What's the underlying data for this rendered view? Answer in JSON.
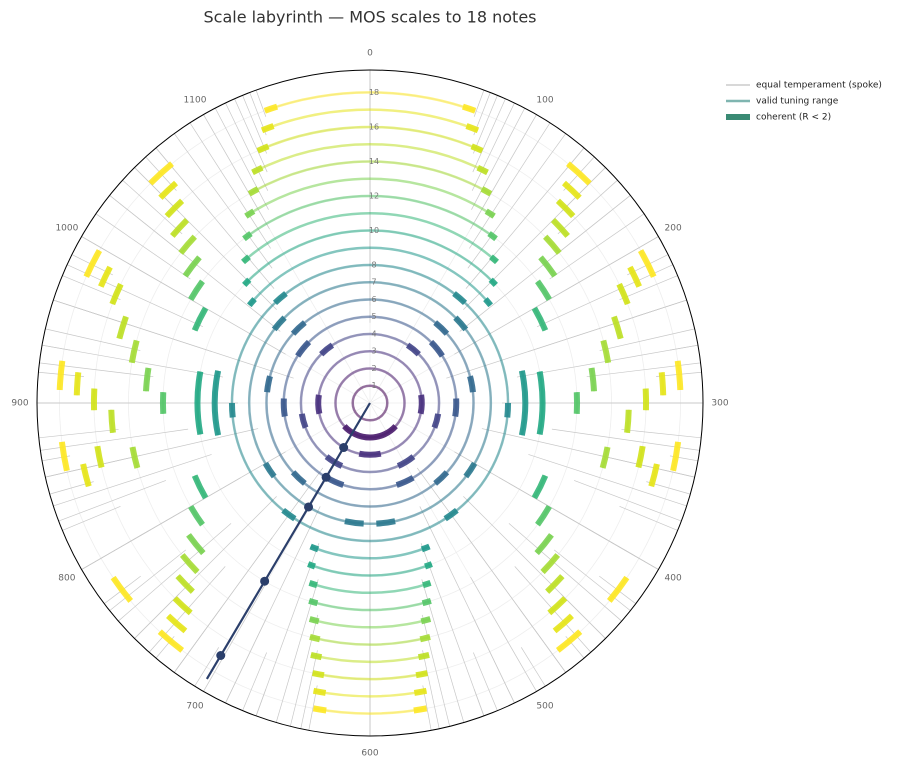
{
  "chart_data": {
    "type": "polar-labyrinth",
    "title": "Scale labyrinth — MOS scales to 18 notes",
    "xlim": [
      0,
      1200
    ],
    "xticks": [
      0,
      100,
      200,
      300,
      400,
      500,
      600,
      700,
      800,
      900,
      1000,
      1100
    ],
    "ylim": [
      0,
      19.3
    ],
    "yticks": [
      1,
      2,
      3,
      4,
      5,
      6,
      7,
      8,
      10,
      12,
      14,
      16,
      18
    ],
    "grid": true,
    "legend_position": "upper right",
    "legend": [
      {
        "name": "equal temperament (spoke)",
        "color": "#999999"
      },
      {
        "name": "valid tuning range",
        "color": "#7fb5b0"
      },
      {
        "name": "coherent (R < 2)",
        "color": "#3a8a74"
      }
    ],
    "generator": {
      "value": 701.955,
      "color": "#2b3f6b",
      "dots": [
        3,
        5,
        7,
        12,
        17
      ]
    },
    "rings": [
      {
        "n": 1,
        "color": "#440154",
        "ranges": [
          [
            0,
            1200
          ]
        ],
        "coherent": []
      },
      {
        "n": 2,
        "color": "#481a6c",
        "ranges": [
          [
            0,
            1200
          ]
        ],
        "coherent": [
          [
            440,
            760
          ]
        ]
      },
      {
        "n": 3,
        "color": "#472f7d",
        "ranges": [
          [
            0,
            1200
          ]
        ],
        "coherent": [
          [
            270,
            340
          ],
          [
            860,
            930
          ],
          [
            560,
            640
          ]
        ]
      },
      {
        "n": 4,
        "color": "#414487",
        "ranges": [
          [
            0,
            1200
          ]
        ],
        "coherent": [
          [
            110,
            150
          ],
          [
            330,
            370
          ],
          [
            830,
            870
          ],
          [
            1050,
            1090
          ],
          [
            470,
            520
          ],
          [
            680,
            730
          ]
        ]
      },
      {
        "n": 5,
        "color": "#39568c",
        "ranges": [
          [
            0,
            1200
          ]
        ],
        "coherent": [
          [
            150,
            190
          ],
          [
            290,
            330
          ],
          [
            870,
            910
          ],
          [
            1010,
            1050
          ],
          [
            500,
            540
          ],
          [
            660,
            700
          ]
        ]
      },
      {
        "n": 6,
        "color": "#31688e",
        "ranges": [
          [
            0,
            1200
          ]
        ],
        "coherent": [
          [
            130,
            160
          ],
          [
            250,
            280
          ],
          [
            920,
            950
          ],
          [
            1040,
            1070
          ],
          [
            440,
            470
          ],
          [
            730,
            760
          ]
        ]
      },
      {
        "n": 7,
        "color": "#2a788e",
        "ranges": [
          [
            0,
            1200
          ]
        ],
        "coherent": [
          [
            150,
            175
          ],
          [
            400,
            425
          ],
          [
            775,
            800
          ],
          [
            1025,
            1050
          ],
          [
            560,
            590
          ],
          [
            610,
            640
          ]
        ]
      },
      {
        "n": 8,
        "color": "#23888e",
        "ranges": [
          [
            0,
            1200
          ]
        ],
        "coherent": [
          [
            125,
            145
          ],
          [
            300,
            320
          ],
          [
            880,
            900
          ],
          [
            1055,
            1075
          ],
          [
            470,
            490
          ],
          [
            710,
            730
          ]
        ]
      },
      {
        "n": 9,
        "color": "#1f988b",
        "ranges": [
          [
            1030,
            170
          ],
          [
            525,
            675
          ],
          [
            260,
            340
          ],
          [
            860,
            940
          ]
        ],
        "coherent": [
          [
            1030,
            1040
          ],
          [
            160,
            170
          ],
          [
            260,
            340
          ],
          [
            860,
            940
          ],
          [
            525,
            535
          ],
          [
            665,
            675
          ]
        ]
      },
      {
        "n": 10,
        "color": "#22a884",
        "ranges": [
          [
            1044,
            156
          ],
          [
            530,
            670
          ],
          [
            265,
            335
          ],
          [
            865,
            935
          ]
        ],
        "coherent": [
          [
            1044,
            1052
          ],
          [
            148,
            156
          ],
          [
            265,
            335
          ],
          [
            865,
            935
          ],
          [
            530,
            538
          ],
          [
            662,
            670
          ]
        ]
      },
      {
        "n": 11,
        "color": "#35b779",
        "ranges": [
          [
            1060,
            140
          ],
          [
            538,
            662
          ],
          [
            200,
            225
          ],
          [
            375,
            400
          ],
          [
            800,
            825
          ],
          [
            975,
            1000
          ]
        ],
        "coherent": [
          [
            1060,
            1068
          ],
          [
            132,
            140
          ],
          [
            538,
            546
          ],
          [
            654,
            662
          ],
          [
            200,
            225
          ],
          [
            375,
            400
          ],
          [
            800,
            825
          ],
          [
            975,
            1000
          ]
        ]
      },
      {
        "n": 12,
        "color": "#54c568",
        "ranges": [
          [
            1075,
            125
          ],
          [
            543,
            657
          ],
          [
            180,
            200
          ],
          [
            290,
            310
          ],
          [
            400,
            420
          ],
          [
            780,
            800
          ],
          [
            890,
            910
          ],
          [
            1000,
            1020
          ]
        ],
        "coherent": [
          [
            1075,
            1083
          ],
          [
            117,
            125
          ],
          [
            543,
            551
          ],
          [
            649,
            657
          ],
          [
            180,
            200
          ],
          [
            290,
            310
          ],
          [
            400,
            420
          ],
          [
            780,
            800
          ],
          [
            890,
            910
          ],
          [
            1000,
            1020
          ]
        ]
      },
      {
        "n": 13,
        "color": "#7ad151",
        "ranges": [
          [
            1088,
            112
          ],
          [
            548,
            652
          ],
          [
            165,
            185
          ],
          [
            270,
            290
          ],
          [
            420,
            440
          ],
          [
            760,
            780
          ],
          [
            910,
            930
          ],
          [
            1015,
            1035
          ]
        ],
        "coherent": [
          [
            1088,
            1096
          ],
          [
            104,
            112
          ],
          [
            548,
            556
          ],
          [
            644,
            652
          ],
          [
            165,
            185
          ],
          [
            270,
            290
          ],
          [
            420,
            440
          ],
          [
            760,
            780
          ],
          [
            910,
            930
          ],
          [
            1015,
            1035
          ]
        ]
      },
      {
        "n": 14,
        "color": "#a5db36",
        "ranges": [
          [
            1100,
            100
          ],
          [
            552,
            648
          ],
          [
            155,
            172
          ],
          [
            250,
            268
          ],
          [
            335,
            352
          ],
          [
            430,
            448
          ],
          [
            752,
            770
          ],
          [
            848,
            865
          ],
          [
            932,
            950
          ],
          [
            1028,
            1045
          ]
        ],
        "coherent": [
          [
            1100,
            1108
          ],
          [
            92,
            100
          ],
          [
            552,
            560
          ],
          [
            640,
            648
          ],
          [
            155,
            172
          ],
          [
            250,
            268
          ],
          [
            335,
            352
          ],
          [
            430,
            448
          ],
          [
            752,
            770
          ],
          [
            848,
            865
          ],
          [
            932,
            950
          ],
          [
            1028,
            1045
          ]
        ]
      },
      {
        "n": 15,
        "color": "#bddf26",
        "ranges": [
          [
            1110,
            90
          ],
          [
            556,
            644
          ],
          [
            150,
            166
          ],
          [
            235,
            252
          ],
          [
            305,
            322
          ],
          [
            440,
            456
          ],
          [
            744,
            760
          ],
          [
            878,
            895
          ],
          [
            948,
            965
          ],
          [
            1034,
            1050
          ]
        ],
        "coherent": [
          [
            1110,
            1118
          ],
          [
            82,
            90
          ],
          [
            556,
            564
          ],
          [
            636,
            644
          ],
          [
            150,
            166
          ],
          [
            235,
            252
          ],
          [
            305,
            322
          ],
          [
            440,
            456
          ],
          [
            744,
            760
          ],
          [
            878,
            895
          ],
          [
            948,
            965
          ],
          [
            1034,
            1050
          ]
        ]
      },
      {
        "n": 16,
        "color": "#d2e21b",
        "ranges": [
          [
            1120,
            80
          ],
          [
            560,
            640
          ],
          [
            143,
            158
          ],
          [
            215,
            230
          ],
          [
            290,
            305
          ],
          [
            330,
            345
          ],
          [
            450,
            465
          ],
          [
            735,
            750
          ],
          [
            855,
            870
          ],
          [
            895,
            910
          ],
          [
            970,
            985
          ],
          [
            1042,
            1057
          ]
        ],
        "coherent": [
          [
            1120,
            1128
          ],
          [
            72,
            80
          ],
          [
            560,
            568
          ],
          [
            632,
            640
          ],
          [
            143,
            158
          ],
          [
            215,
            230
          ],
          [
            290,
            305
          ],
          [
            330,
            345
          ],
          [
            450,
            465
          ],
          [
            735,
            750
          ],
          [
            855,
            870
          ],
          [
            895,
            910
          ],
          [
            970,
            985
          ],
          [
            1042,
            1057
          ]
        ]
      },
      {
        "n": 17,
        "color": "#e5e419",
        "ranges": [
          [
            1128,
            72
          ],
          [
            563,
            637
          ],
          [
            138,
            152
          ],
          [
            208,
            222
          ],
          [
            280,
            295
          ],
          [
            340,
            355
          ],
          [
            455,
            470
          ],
          [
            730,
            745
          ],
          [
            845,
            860
          ],
          [
            905,
            920
          ],
          [
            978,
            992
          ],
          [
            1048,
            1062
          ]
        ],
        "coherent": [
          [
            1128,
            1136
          ],
          [
            64,
            72
          ],
          [
            563,
            571
          ],
          [
            629,
            637
          ],
          [
            138,
            152
          ],
          [
            208,
            222
          ],
          [
            280,
            295
          ],
          [
            340,
            355
          ],
          [
            455,
            470
          ],
          [
            730,
            745
          ],
          [
            845,
            860
          ],
          [
            905,
            920
          ],
          [
            978,
            992
          ],
          [
            1048,
            1062
          ]
        ]
      },
      {
        "n": 18,
        "color": "#fde725",
        "ranges": [
          [
            1134,
            66
          ],
          [
            565,
            635
          ],
          [
            132,
            150
          ],
          [
            202,
            220
          ],
          [
            274,
            292
          ],
          [
            324,
            342
          ],
          [
            414,
            432
          ],
          [
            458,
            476
          ],
          [
            724,
            742
          ],
          [
            768,
            786
          ],
          [
            858,
            876
          ],
          [
            908,
            926
          ],
          [
            980,
            998
          ],
          [
            1050,
            1068
          ]
        ],
        "coherent": [
          [
            1134,
            1142
          ],
          [
            58,
            66
          ],
          [
            565,
            573
          ],
          [
            627,
            635
          ],
          [
            132,
            150
          ],
          [
            202,
            220
          ],
          [
            274,
            292
          ],
          [
            324,
            342
          ],
          [
            414,
            432
          ],
          [
            458,
            476
          ],
          [
            724,
            742
          ],
          [
            768,
            786
          ],
          [
            858,
            876
          ],
          [
            908,
            926
          ],
          [
            980,
            998
          ],
          [
            1050,
            1068
          ]
        ]
      }
    ]
  }
}
